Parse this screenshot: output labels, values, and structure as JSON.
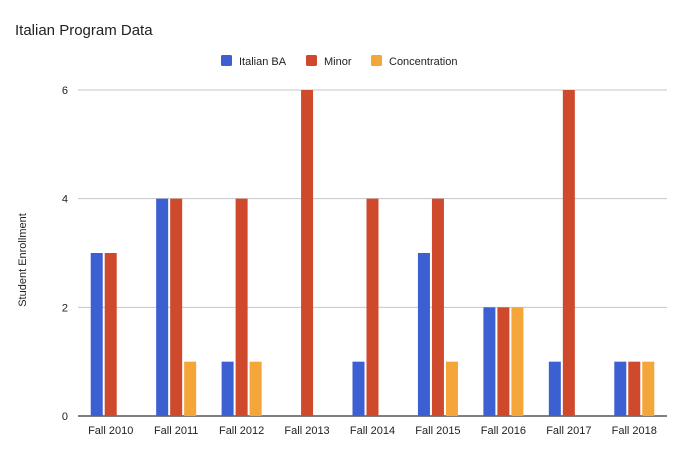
{
  "chart_data": {
    "type": "bar",
    "title": "Italian Program Data",
    "xlabel": "",
    "ylabel": "Student Enrollment",
    "categories": [
      "Fall 2010",
      "Fall 2011",
      "Fall 2012",
      "Fall 2013",
      "Fall 2014",
      "Fall 2015",
      "Fall 2016",
      "Fall 2017",
      "Fall 2018"
    ],
    "series": [
      {
        "name": "Italian BA",
        "color": "#3c5fd1",
        "values": [
          3,
          4,
          1,
          0,
          1,
          3,
          2,
          1,
          1
        ]
      },
      {
        "name": "Minor",
        "color": "#cf4a2c",
        "values": [
          3,
          4,
          4,
          6,
          4,
          4,
          2,
          6,
          1
        ]
      },
      {
        "name": "Concentration",
        "color": "#f4a63a",
        "values": [
          0,
          1,
          1,
          0,
          0,
          1,
          2,
          0,
          1
        ]
      }
    ],
    "ylim": [
      0,
      6
    ],
    "yticks": [
      0,
      2,
      4,
      6
    ],
    "grid": true,
    "legend_position": "top-center"
  }
}
